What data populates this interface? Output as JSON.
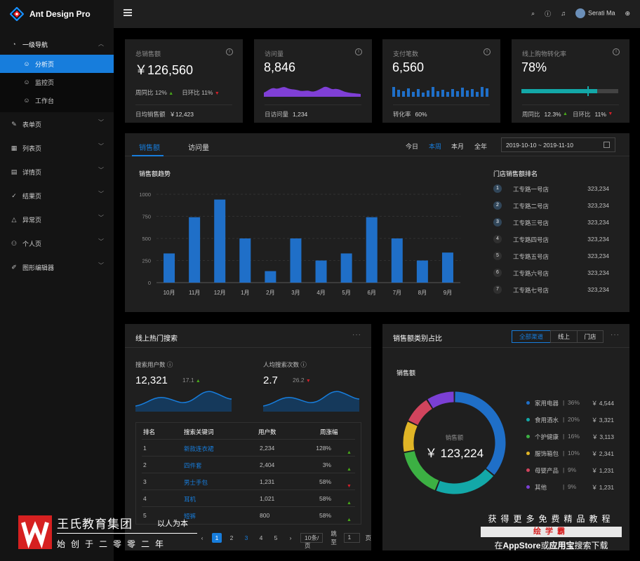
{
  "app": {
    "title": "Ant Design Pro"
  },
  "sidebar": {
    "group_title": "一级导航",
    "sub_items": [
      {
        "label": "分析页",
        "icon": "dashboard-icon",
        "active": true
      },
      {
        "label": "监控页",
        "icon": "smile-icon",
        "active": false
      },
      {
        "label": "工作台",
        "icon": "smile-icon",
        "active": false
      }
    ],
    "items": [
      {
        "label": "表单页",
        "icon": "form-icon"
      },
      {
        "label": "列表页",
        "icon": "table-icon"
      },
      {
        "label": "详情页",
        "icon": "profile-icon"
      },
      {
        "label": "结果页",
        "icon": "check-circle-icon"
      },
      {
        "label": "异常页",
        "icon": "warning-icon"
      },
      {
        "label": "个人页",
        "icon": "user-icon"
      },
      {
        "label": "图形编辑器",
        "icon": "highlight-icon"
      }
    ]
  },
  "header": {
    "user_name": "Serati Ma"
  },
  "stats": {
    "sales": {
      "title": "总销售额",
      "value": "￥126,560",
      "wow_label": "周同比",
      "wow": "12%",
      "dod_label": "日环比",
      "dod": "11%",
      "foot_label": "日均销售额",
      "foot_value": "￥12,423"
    },
    "visits": {
      "title": "访问量",
      "value": "8,846",
      "foot_label": "日访问量",
      "foot_value": "1,234"
    },
    "payments": {
      "title": "支付笔数",
      "value": "6,560",
      "foot_label": "转化率",
      "foot_value": "60%"
    },
    "conversion": {
      "title": "线上购物转化率",
      "value": "78%",
      "progress": 0.78,
      "wow_label": "周同比",
      "wow": "12.3%",
      "dod_label": "日环比",
      "dod": "11%"
    }
  },
  "sales_section": {
    "tabs": [
      "销售额",
      "访问量"
    ],
    "periods": [
      "今日",
      "本周",
      "本月",
      "全年"
    ],
    "active_period": "本周",
    "range": "2019-10-10 ~ 2019-11-10",
    "chart_title": "销售额趋势",
    "ranking_title": "门店销售额排名",
    "ranking": [
      {
        "no": "1",
        "name": "工专路一号店",
        "value": "323,234"
      },
      {
        "no": "2",
        "name": "工专路二号店",
        "value": "323,234"
      },
      {
        "no": "3",
        "name": "工专路三号店",
        "value": "323,234"
      },
      {
        "no": "4",
        "name": "工专路四号店",
        "value": "323,234"
      },
      {
        "no": "5",
        "name": "工专路五号店",
        "value": "323,234"
      },
      {
        "no": "6",
        "name": "工专路六号店",
        "value": "323,234"
      },
      {
        "no": "7",
        "name": "工专路七号店",
        "value": "323,234"
      }
    ]
  },
  "chart_data": {
    "type": "bar",
    "title": "销售额趋势",
    "categories": [
      "10月",
      "11月",
      "12月",
      "1月",
      "2月",
      "3月",
      "4月",
      "5月",
      "6月",
      "7月",
      "8月",
      "9月"
    ],
    "values": [
      330,
      740,
      940,
      500,
      130,
      500,
      250,
      330,
      740,
      500,
      250,
      340
    ],
    "yticks": [
      "0",
      "250",
      "500",
      "750",
      "1000"
    ],
    "ylim": [
      0,
      1000
    ],
    "grid": true,
    "color": "#1f6fc8"
  },
  "search": {
    "title": "线上热门搜索",
    "users_label": "搜索用户数",
    "users_value": "12,321",
    "users_change": "17.1",
    "avg_label": "人均搜索次数",
    "avg_value": "2.7",
    "avg_change": "26.2",
    "columns": [
      "排名",
      "搜索关键词",
      "用户数",
      "周涨幅"
    ],
    "rows": [
      {
        "rank": "1",
        "keyword": "新款连衣裙",
        "users": "2,234",
        "change": "128%",
        "dir": "up"
      },
      {
        "rank": "2",
        "keyword": "四件套",
        "users": "2,404",
        "change": "3%",
        "dir": "up"
      },
      {
        "rank": "3",
        "keyword": "男士手包",
        "users": "1,231",
        "change": "58%",
        "dir": "down"
      },
      {
        "rank": "4",
        "keyword": "耳机",
        "users": "1,021",
        "change": "58%",
        "dir": "up"
      },
      {
        "rank": "5",
        "keyword": "短裤",
        "users": "800",
        "change": "58%",
        "dir": "up"
      }
    ],
    "pagination": {
      "pages": [
        "1",
        "2",
        "3",
        "4",
        "5"
      ],
      "page_size": "10条/页",
      "jump_label": "跳至",
      "jump_value": "1",
      "page_suffix": "页"
    }
  },
  "category": {
    "title": "销售额类别占比",
    "segments": [
      "全部渠道",
      "线上",
      "门店"
    ],
    "sub_title": "销售额",
    "center_label": "销售额",
    "center_value": "￥ 123,224",
    "items": [
      {
        "name": "家用电器",
        "pct": "36%",
        "amount": "￥ 4,544",
        "color": "#1f6fc8"
      },
      {
        "name": "食用酒水",
        "pct": "20%",
        "amount": "￥ 3,321",
        "color": "#13a8a8"
      },
      {
        "name": "个护健康",
        "pct": "16%",
        "amount": "￥ 3,113",
        "color": "#3cb043"
      },
      {
        "name": "服饰箱包",
        "pct": "10%",
        "amount": "￥ 2,341",
        "color": "#e0b526"
      },
      {
        "name": "母婴产品",
        "pct": "9%",
        "amount": "￥ 1,231",
        "color": "#d1445d"
      },
      {
        "name": "其他",
        "pct": "9%",
        "amount": "￥ 1,231",
        "color": "#7b3fd4"
      }
    ]
  },
  "watermarks": {
    "left_title": "王氏教育集团",
    "left_slogan": "以人为本",
    "left_sub": "始创于二零零二年",
    "right_line1": "获得更多免费精品教程",
    "right_brand": "绘学霸",
    "right_line3_pre": "在",
    "right_line3_a": "AppStore",
    "right_line3_mid": "或",
    "right_line3_b": "应用宝",
    "right_line3_post": "搜索下载"
  }
}
